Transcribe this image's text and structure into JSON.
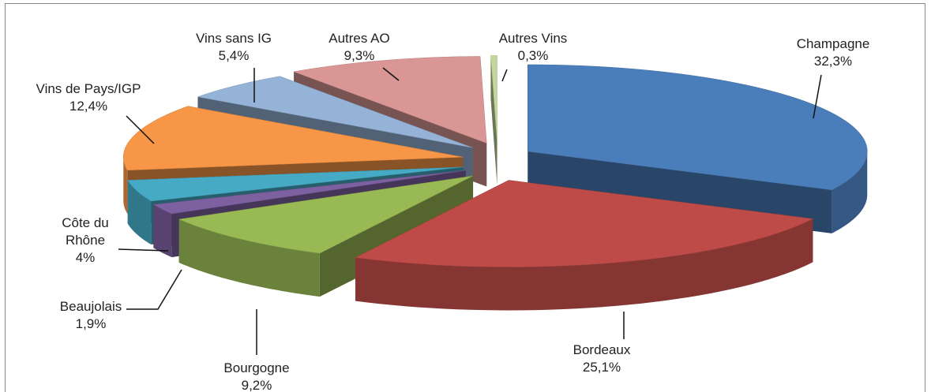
{
  "chart_data": {
    "type": "pie3d",
    "categories": [
      "Champagne",
      "Bordeaux",
      "Bourgogne",
      "Beaujolais",
      "Côte du Rhône",
      "Vins de Pays/IGP",
      "Vins sans IG",
      "Autres AO",
      "Autres Vins"
    ],
    "values": [
      32.3,
      25.1,
      9.2,
      1.9,
      4,
      12.4,
      5.4,
      9.3,
      0.3
    ],
    "value_labels": [
      "32,3%",
      "25,1%",
      "9,2%",
      "1,9%",
      "4%",
      "12,4%",
      "5,4%",
      "9,3%",
      "0,3%"
    ],
    "colors": [
      "#4a7ebb",
      "#be4b48",
      "#98b954",
      "#7d60a0",
      "#46aac5",
      "#f79646",
      "#95b3d7",
      "#d99694",
      "#c3d69b"
    ]
  }
}
